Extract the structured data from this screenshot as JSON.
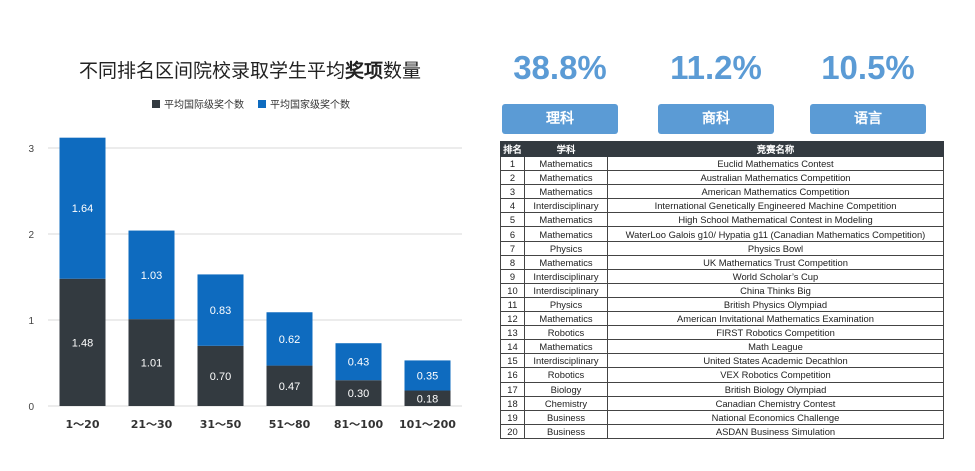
{
  "chart_data": {
    "type": "bar",
    "stacked": true,
    "title_pre": "不同排名区间院校录取学生平均",
    "title_bold": "奖项",
    "title_post": "数量",
    "categories": [
      "1～20",
      "21～30",
      "31～50",
      "51～80",
      "81～100",
      "101～200"
    ],
    "series": [
      {
        "name": "平均国际级奖个数",
        "color": "#333a40",
        "values": [
          1.48,
          1.01,
          0.7,
          0.47,
          0.3,
          0.18
        ],
        "labels": [
          "1.48",
          "1.01",
          "0.70",
          "0.47",
          "0.30",
          "0.18"
        ]
      },
      {
        "name": "平均国家级奖个数",
        "color": "#0e6bbf",
        "values": [
          1.64,
          1.03,
          0.83,
          0.62,
          0.43,
          0.35
        ],
        "labels": [
          "1.64",
          "1.03",
          "0.83",
          "0.62",
          "0.43",
          "0.35"
        ]
      }
    ],
    "ylim": [
      0,
      3
    ],
    "yticks": [
      "0",
      "1",
      "2",
      "3"
    ],
    "grid": true,
    "legend_position": "top"
  },
  "stats": [
    {
      "value": "38.8%",
      "label": "理科"
    },
    {
      "value": "11.2%",
      "label": "商科"
    },
    {
      "value": "10.5%",
      "label": "语言"
    }
  ],
  "table": {
    "headers": [
      "排名",
      "学科",
      "竞赛名称"
    ],
    "rows": [
      [
        "1",
        "Mathematics",
        "Euclid Mathematics Contest"
      ],
      [
        "2",
        "Mathematics",
        "Australian Mathematics Competition"
      ],
      [
        "3",
        "Mathematics",
        "American Mathematics Competition"
      ],
      [
        "4",
        "Interdisciplinary",
        "International Genetically Engineered Machine Competition"
      ],
      [
        "5",
        "Mathematics",
        "High School Mathematical Contest in Modeling"
      ],
      [
        "6",
        "Mathematics",
        "WaterLoo Galois g10/ Hypatia g11 (Canadian Mathematics Competition)"
      ],
      [
        "7",
        "Physics",
        "Physics Bowl"
      ],
      [
        "8",
        "Mathematics",
        "UK Mathematics Trust Competition"
      ],
      [
        "9",
        "Interdisciplinary",
        "World Scholar’s Cup"
      ],
      [
        "10",
        "Interdisciplinary",
        "China Thinks Big"
      ],
      [
        "11",
        "Physics",
        "British Physics Olympiad"
      ],
      [
        "12",
        "Mathematics",
        "American Invitational Mathematics Examination"
      ],
      [
        "13",
        "Robotics",
        "FIRST Robotics Competition"
      ],
      [
        "14",
        "Mathematics",
        "Math League"
      ],
      [
        "15",
        "Interdisciplinary",
        "United States Academic Decathlon"
      ],
      [
        "16",
        "Robotics",
        "VEX Robotics Competition"
      ],
      [
        "17",
        "Biology",
        "British Biology Olympiad"
      ],
      [
        "18",
        "Chemistry",
        "Canadian Chemistry Contest"
      ],
      [
        "19",
        "Business",
        "National Economics Challenge"
      ],
      [
        "20",
        "Business",
        "ASDAN Business Simulation"
      ]
    ]
  }
}
